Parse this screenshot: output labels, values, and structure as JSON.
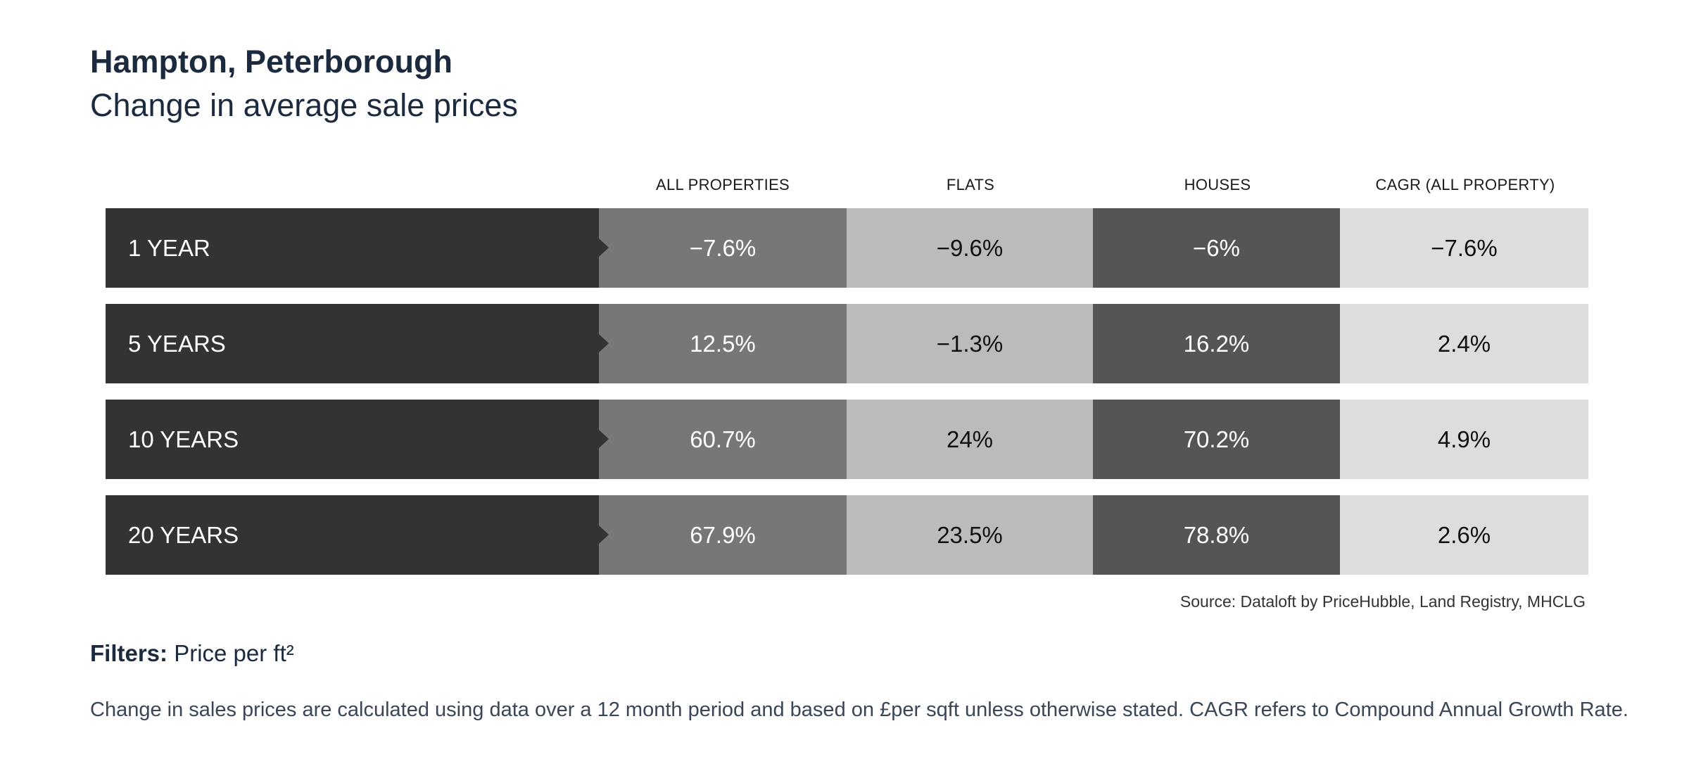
{
  "title": "Hampton, Peterborough",
  "subtitle": "Change in average sale prices",
  "columns": [
    "ALL PROPERTIES",
    "FLATS",
    "HOUSES",
    "CAGR (ALL PROPERTY)"
  ],
  "rows": [
    {
      "label": "1 YEAR",
      "values": [
        "−7.6%",
        "−9.6%",
        "−6%",
        "−7.6%"
      ]
    },
    {
      "label": "5 YEARS",
      "values": [
        "12.5%",
        "−1.3%",
        "16.2%",
        "2.4%"
      ]
    },
    {
      "label": "10 YEARS",
      "values": [
        "60.7%",
        "24%",
        "70.2%",
        "4.9%"
      ]
    },
    {
      "label": "20 YEARS",
      "values": [
        "67.9%",
        "23.5%",
        "78.8%",
        "2.6%"
      ]
    }
  ],
  "source": "Source: Dataloft by PriceHubble, Land Registry, MHCLG",
  "filters": {
    "label": "Filters:",
    "value": "Price per ft²"
  },
  "note": "Change in sales prices are calculated using data over a 12 month period and based on £per sqft unless otherwise stated. CAGR refers to Compound Annual Growth Rate.",
  "colors": {
    "row_label": "#333333",
    "all_properties": "#777777",
    "flats": "#bbbbbb",
    "houses": "#555555",
    "cagr": "#dddddd",
    "title_text": "#1b2a3e"
  },
  "chart_data": {
    "type": "table",
    "title": "Hampton, Peterborough",
    "subtitle": "Change in average sale prices",
    "columns": [
      "ALL PROPERTIES",
      "FLATS",
      "HOUSES",
      "CAGR (ALL PROPERTY)"
    ],
    "rows": [
      "1 YEAR",
      "5 YEARS",
      "10 YEARS",
      "20 YEARS"
    ],
    "values": [
      [
        -7.6,
        -9.6,
        -6,
        -7.6
      ],
      [
        12.5,
        -1.3,
        16.2,
        2.4
      ],
      [
        60.7,
        24,
        70.2,
        4.9
      ],
      [
        67.9,
        23.5,
        78.8,
        2.6
      ]
    ],
    "unit": "%"
  }
}
